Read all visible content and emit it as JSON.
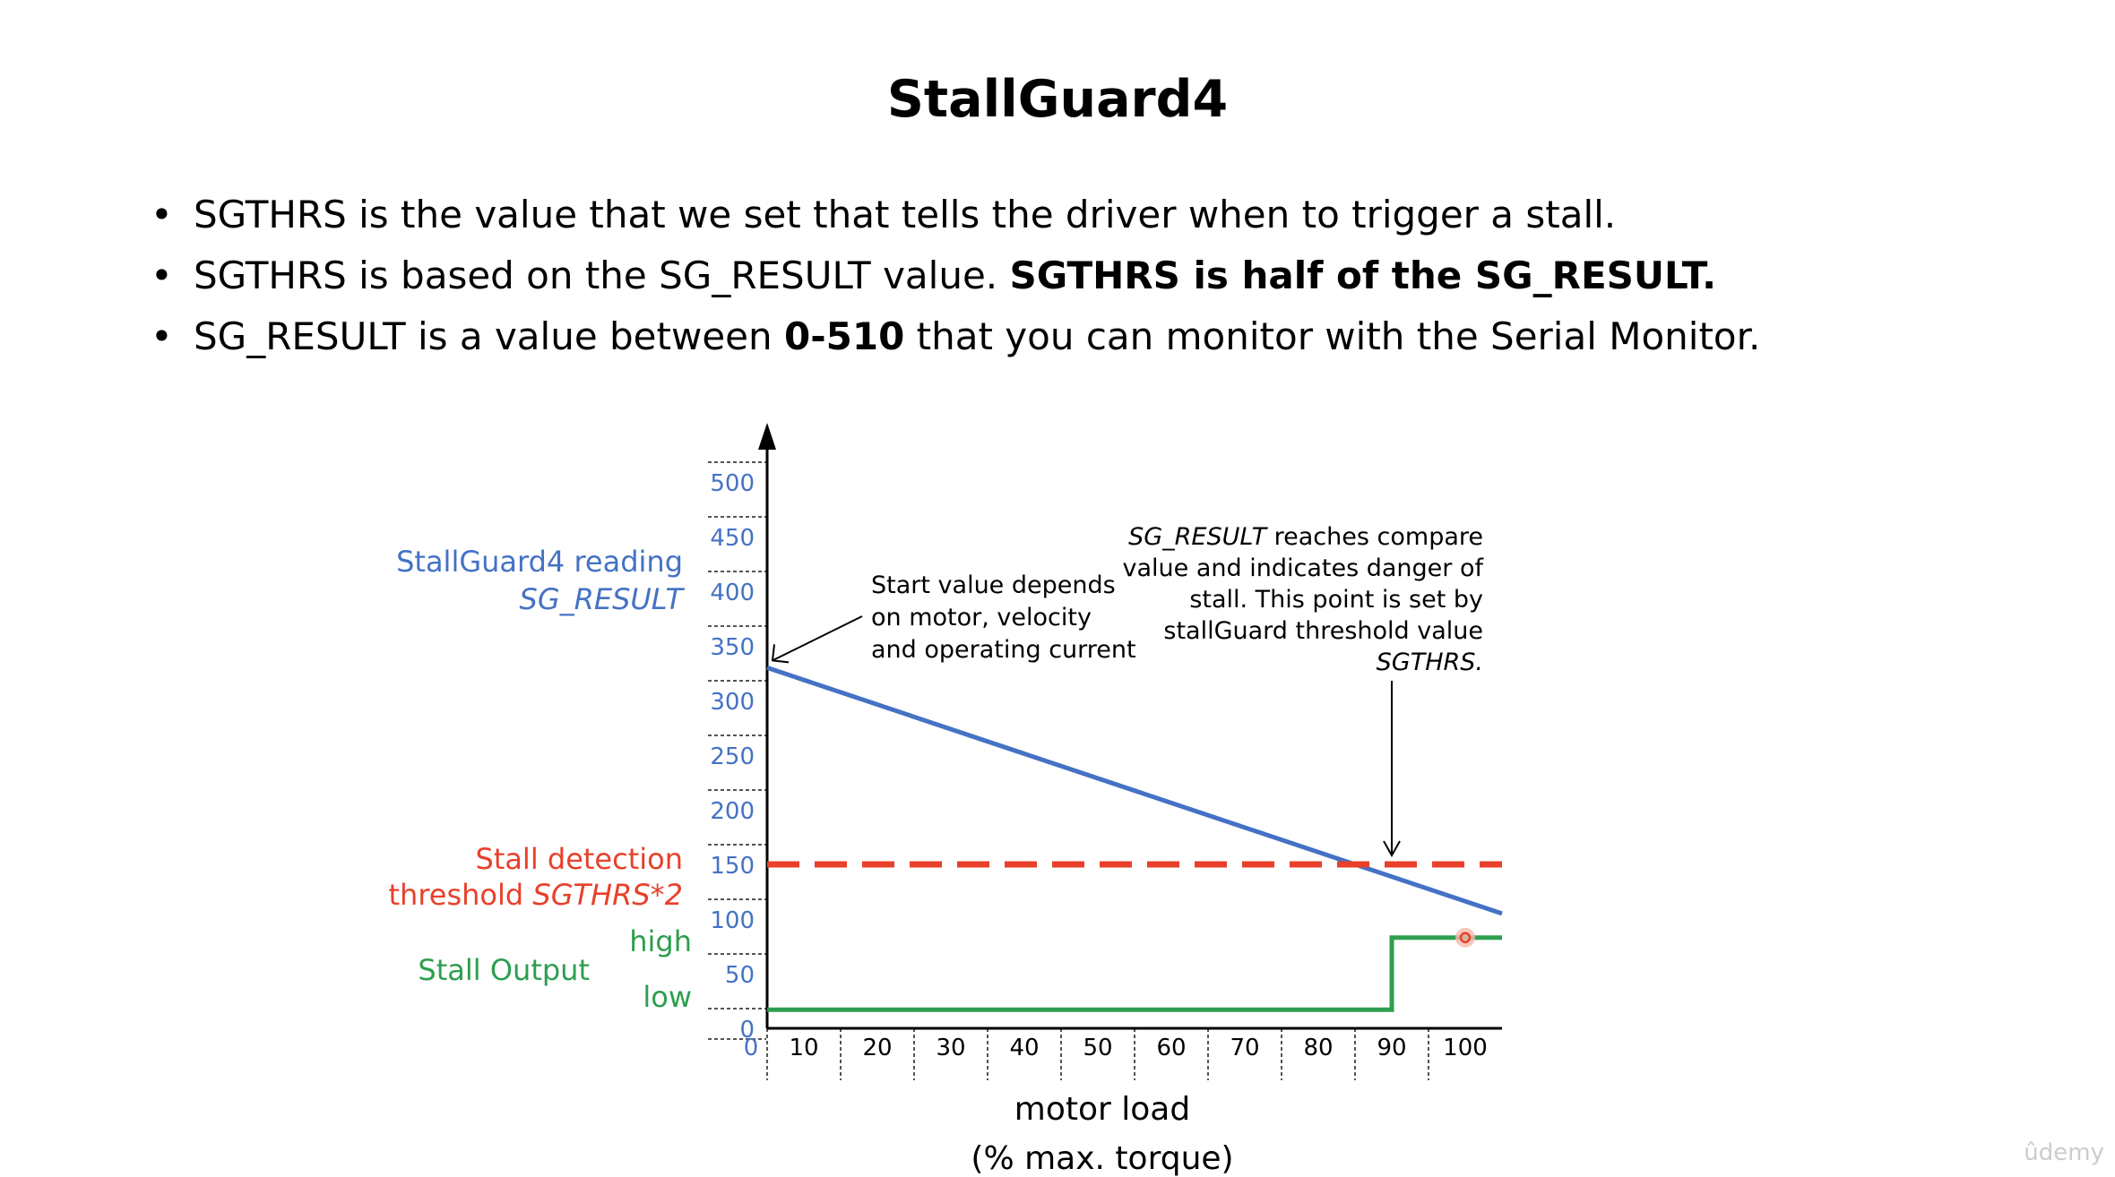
{
  "slide": {
    "title": "StallGuard4",
    "bullets": [
      {
        "parts": [
          {
            "text": "SGTHRS is the value that we set that tells the driver when to trigger a stall.",
            "bold": false
          }
        ]
      },
      {
        "parts": [
          {
            "text": "SGTHRS is based on the SG_RESULT value. ",
            "bold": false
          },
          {
            "text": "SGTHRS is half of the SG_RESULT.",
            "bold": true
          }
        ]
      },
      {
        "parts": [
          {
            "text": "SG_RESULT is a value between ",
            "bold": false
          },
          {
            "text": "0-510",
            "bold": true
          },
          {
            "text": " that you can monitor with the Serial Monitor.",
            "bold": false
          }
        ]
      }
    ]
  },
  "chart_data": {
    "type": "line",
    "xlabel": "motor load",
    "xlabel_sub": "(% max. torque)",
    "x_ticks": [
      0,
      10,
      20,
      30,
      40,
      50,
      60,
      70,
      80,
      90,
      100
    ],
    "y_ticks": [
      0,
      50,
      100,
      150,
      200,
      250,
      300,
      350,
      400,
      450,
      500
    ],
    "xlim": [
      0,
      100
    ],
    "ylim": [
      0,
      500
    ],
    "y_axis_label": {
      "line1": "StallGuard4 reading",
      "line2": "SG_RESULT"
    },
    "series": [
      {
        "key": "sg_result",
        "color": "#4472c4",
        "style": "solid",
        "points": [
          [
            0,
            330
          ],
          [
            100,
            105
          ]
        ]
      },
      {
        "key": "threshold",
        "color": "#e8402a",
        "style": "dashed",
        "points": [
          [
            0,
            150
          ],
          [
            100,
            150
          ]
        ]
      },
      {
        "key": "stall_output",
        "color": "#2e9e4f",
        "style": "step",
        "points": [
          [
            0,
            17
          ],
          [
            85,
            17
          ],
          [
            85,
            83
          ],
          [
            100,
            83
          ]
        ]
      }
    ],
    "threshold_label": {
      "line1": "Stall detection",
      "line2_plain": "threshold ",
      "line2_italic": "SGTHRS*2"
    },
    "stall_output_label": {
      "title": "Stall Output",
      "high": "high",
      "low": "low"
    },
    "annotations": {
      "start": {
        "lines": [
          "Start value depends",
          "on motor, velocity",
          "and operating current"
        ],
        "target": [
          0,
          330
        ]
      },
      "compare": {
        "line1_italic": "SG_RESULT",
        "line1_plain": " reaches compare",
        "lines": [
          "value and indicates danger of",
          "stall. This point is set by",
          "stallGuard threshold value"
        ],
        "last_italic": "SGTHRS.",
        "target": [
          85,
          150
        ]
      }
    },
    "colors": {
      "blue": "#4472c4",
      "red": "#e8402a",
      "green": "#2e9e4f",
      "axis": "#000000",
      "tick_text": "#4472c4"
    },
    "marker": {
      "x": 95,
      "y": 83,
      "color": "#e8402a"
    }
  },
  "watermark": "ûdemy"
}
